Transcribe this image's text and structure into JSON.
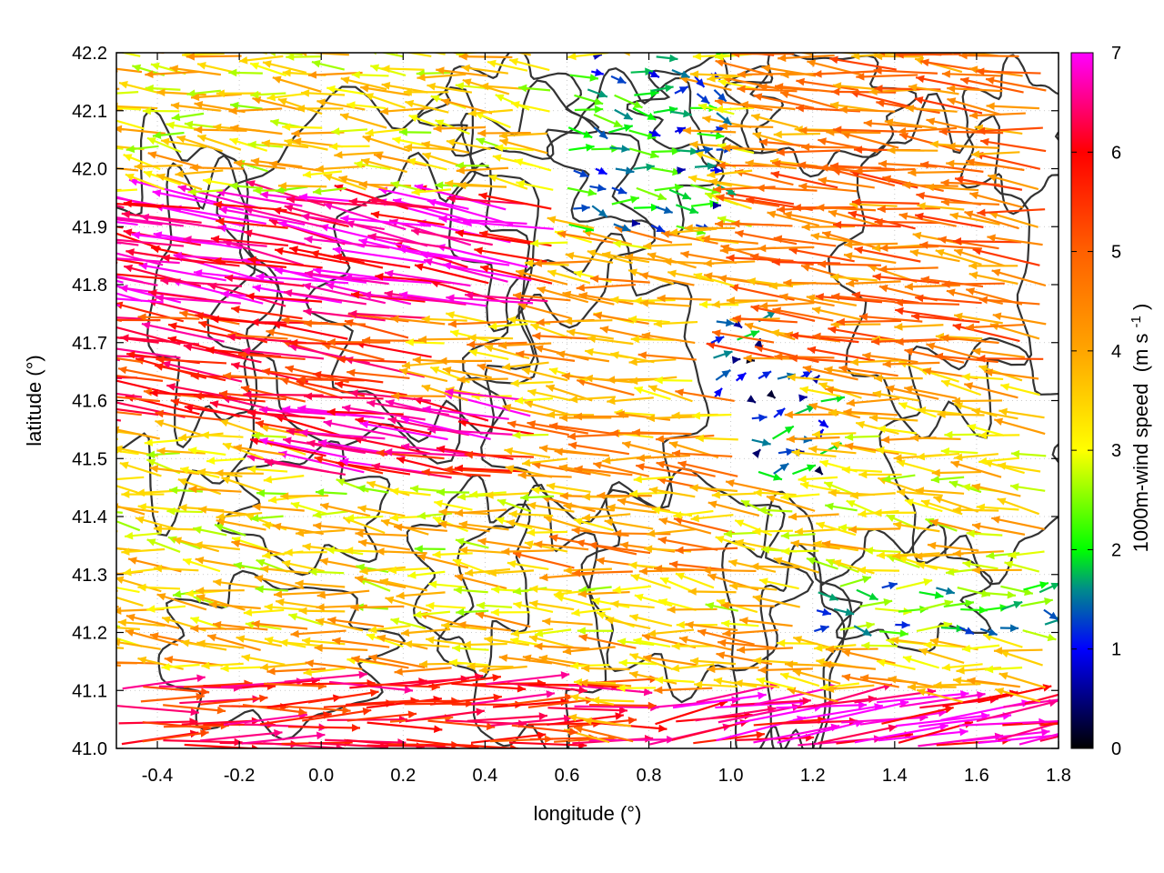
{
  "chart_data": {
    "type": "vector-field",
    "title": "",
    "xlabel": "longitude (°)",
    "ylabel": "latitude (°)",
    "xlim": [
      -0.5,
      1.8
    ],
    "ylim": [
      41.0,
      42.2
    ],
    "x_ticks": [
      -0.4,
      -0.2,
      0.0,
      0.2,
      0.4,
      0.6,
      0.8,
      1.0,
      1.2,
      1.4,
      1.6,
      1.8
    ],
    "x_tick_labels": [
      "-0.4",
      "-0.2",
      "0.0",
      "0.2",
      "0.4",
      "0.6",
      "0.8",
      "1.0",
      "1.2",
      "1.4",
      "1.6",
      "1.8"
    ],
    "y_ticks": [
      41.0,
      41.1,
      41.2,
      41.3,
      41.4,
      41.5,
      41.6,
      41.7,
      41.8,
      41.9,
      42.0,
      42.1,
      42.2
    ],
    "y_tick_labels": [
      "41.0",
      "41.1",
      "41.2",
      "41.3",
      "41.4",
      "41.5",
      "41.6",
      "41.7",
      "41.8",
      "41.9",
      "42.0",
      "42.1",
      "42.2"
    ],
    "grid": true,
    "colorbar": {
      "label": "1000m-wind speed",
      "unit_prefix": "(m s",
      "unit_exponent": "-1",
      "unit_suffix": ")",
      "range": [
        0,
        7
      ],
      "ticks": [
        0,
        1,
        2,
        3,
        4,
        5,
        6,
        7
      ],
      "tick_labels": [
        "0",
        "1",
        "2",
        "3",
        "4",
        "5",
        "6",
        "7"
      ],
      "stops": [
        {
          "value": 0,
          "color": "#000000"
        },
        {
          "value": 1,
          "color": "#0000ff"
        },
        {
          "value": 1.6,
          "color": "#008b8b"
        },
        {
          "value": 2,
          "color": "#00ff00"
        },
        {
          "value": 3,
          "color": "#ffff00"
        },
        {
          "value": 4,
          "color": "#ffa500"
        },
        {
          "value": 5,
          "color": "#ff6000"
        },
        {
          "value": 6,
          "color": "#ff0000"
        },
        {
          "value": 7,
          "color": "#ff00ff"
        }
      ]
    },
    "wind_regions": [
      {
        "lon": [
          -0.5,
          0.6
        ],
        "lat": [
          41.75,
          41.95
        ],
        "u": -6.5,
        "v": 1.2
      },
      {
        "lon": [
          -0.5,
          0.3
        ],
        "lat": [
          41.55,
          41.75
        ],
        "u": -5.6,
        "v": 0.8
      },
      {
        "lon": [
          0.0,
          0.55
        ],
        "lat": [
          41.45,
          41.6
        ],
        "u": -6.2,
        "v": 1.0
      },
      {
        "lon": [
          -0.5,
          0.7
        ],
        "lat": [
          41.0,
          41.12
        ],
        "u": 5.8,
        "v": 0.1
      },
      {
        "lon": [
          0.8,
          1.8
        ],
        "lat": [
          41.0,
          41.08
        ],
        "u": 6.5,
        "v": 1.0
      },
      {
        "lon": [
          0.95,
          1.25
        ],
        "lat": [
          41.45,
          41.75
        ],
        "u": 1.0,
        "v": 0.2
      },
      {
        "lon": [
          0.6,
          1.0
        ],
        "lat": [
          41.9,
          42.2
        ],
        "u": 1.5,
        "v": -0.2
      },
      {
        "lon": [
          1.2,
          1.8
        ],
        "lat": [
          41.2,
          41.3
        ],
        "u": 2.0,
        "v": 0.0
      },
      {
        "lon": [
          1.1,
          1.8
        ],
        "lat": [
          41.65,
          42.2
        ],
        "u": -4.5,
        "v": 0.5
      },
      {
        "lon": [
          0.6,
          1.05
        ],
        "lat": [
          41.3,
          41.6
        ],
        "u": -4.0,
        "v": 0.4
      }
    ]
  }
}
